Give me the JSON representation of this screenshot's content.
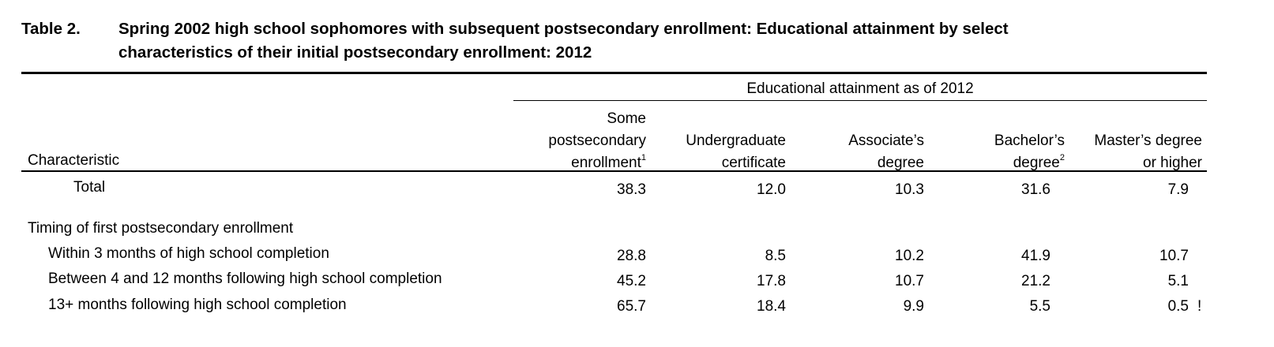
{
  "table": {
    "number": "Table 2.",
    "title_line1": "Spring 2002 high school sophomores with subsequent postsecondary enrollment: Educational attainment by select",
    "title_line2": "characteristics of their initial postsecondary enrollment: 2012",
    "spanner": "Educational attainment as of 2012",
    "stub_header": "Characteristic",
    "columns": [
      {
        "lines": [
          "Some",
          "postsecondary",
          "enrollment"
        ],
        "footnote": "1"
      },
      {
        "lines": [
          "Undergraduate",
          "certificate"
        ],
        "footnote": ""
      },
      {
        "lines": [
          "Associate’s",
          "degree"
        ],
        "footnote": ""
      },
      {
        "lines": [
          "Bachelor’s",
          "degree"
        ],
        "footnote": "2"
      },
      {
        "lines": [
          "Master’s degree",
          "or higher"
        ],
        "footnote": ""
      }
    ],
    "total_row": {
      "label": "Total",
      "values": [
        "38.3",
        "12.0",
        "10.3",
        "31.6",
        "7.9"
      ]
    },
    "section_header": "Timing of first postsecondary enrollment",
    "rows": [
      {
        "label": "Within 3 months of high school completion",
        "values": [
          "28.8",
          "8.5",
          "10.2",
          "41.9",
          "10.7"
        ],
        "flag": ""
      },
      {
        "label": "Between 4 and 12 months following high school completion",
        "values": [
          "45.2",
          "17.8",
          "10.7",
          "21.2",
          "5.1"
        ],
        "flag": ""
      },
      {
        "label": "13+ months following high school completion",
        "values": [
          "65.7",
          "18.4",
          "9.9",
          "5.5",
          "0.5"
        ],
        "flag": "!"
      }
    ]
  }
}
